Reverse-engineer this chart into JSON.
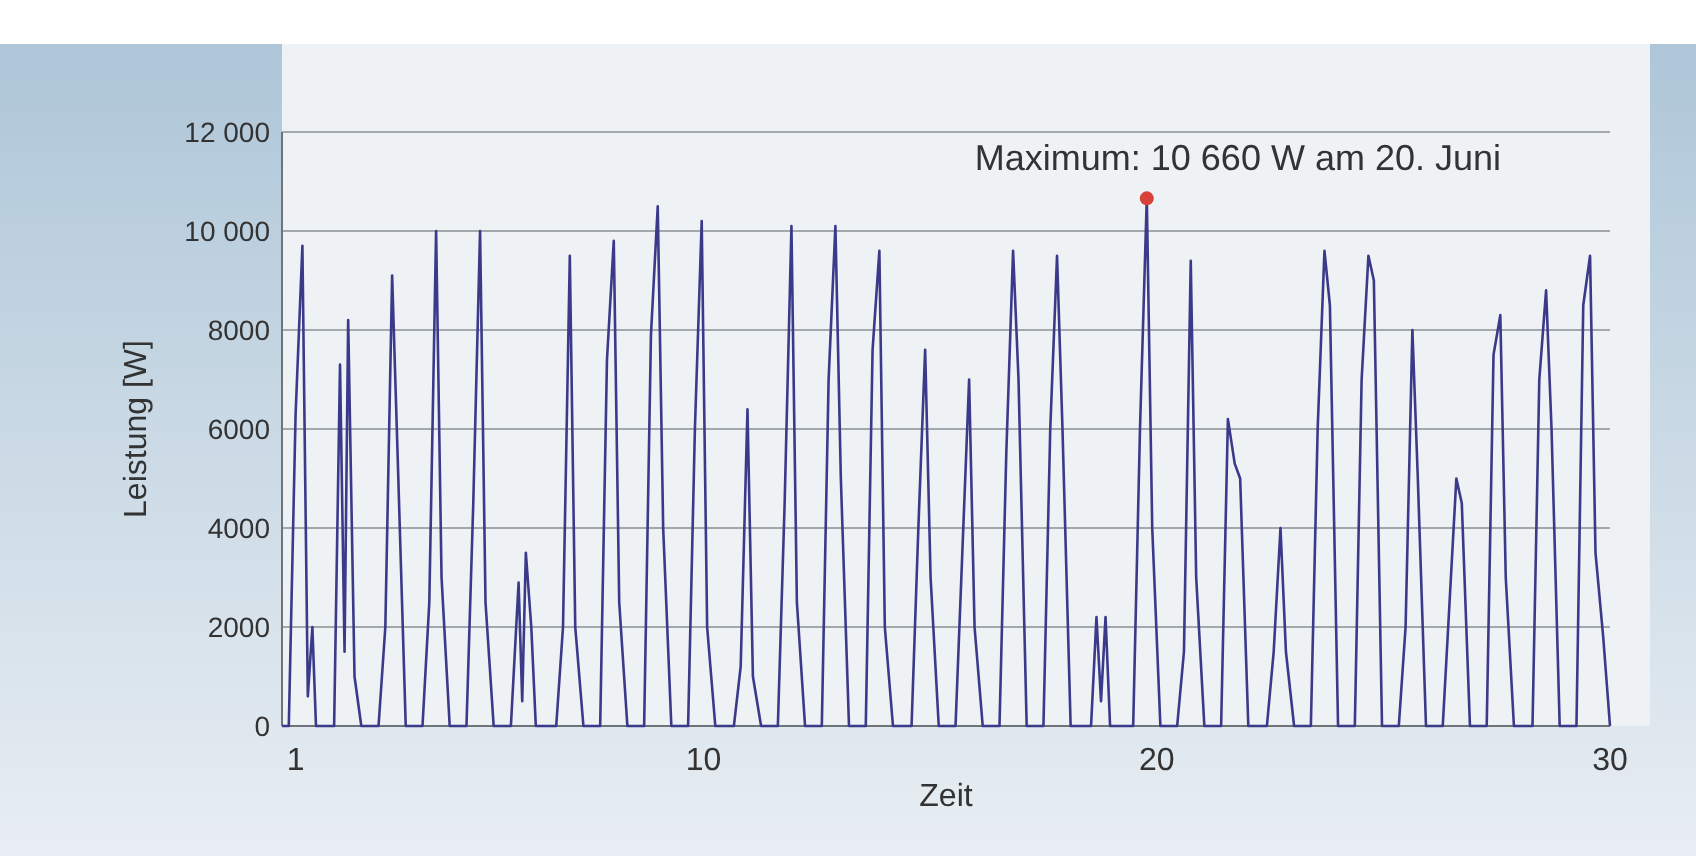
{
  "chart_data": {
    "type": "line",
    "xlabel": "Zeit",
    "ylabel": "Leistung [W]",
    "xlim": [
      0.7,
      30
    ],
    "xticks": [
      1,
      10,
      20,
      30
    ],
    "ylim": [
      0,
      12000
    ],
    "yticks": [
      0,
      2000,
      4000,
      6000,
      8000,
      {
        "value": 10000,
        "label": "10 000"
      },
      {
        "value": 12000,
        "label": "12 000"
      }
    ],
    "grid": "y",
    "annotations": [
      {
        "text": "Maximum: 10 660 W am 20. Juni",
        "x": 19.78,
        "y": 10660
      }
    ],
    "series": [
      {
        "color": "#3b3a8a",
        "x": [
          0.7,
          0.85,
          1.0,
          1.15,
          1.27,
          1.37,
          1.45,
          1.85,
          1.98,
          2.08,
          2.16,
          2.3,
          2.45,
          2.83,
          2.98,
          3.13,
          3.25,
          3.43,
          3.8,
          3.95,
          4.1,
          4.22,
          4.4,
          4.77,
          4.92,
          5.07,
          5.19,
          5.37,
          5.75,
          5.92,
          6.0,
          6.08,
          6.2,
          6.3,
          6.75,
          6.9,
          7.05,
          7.17,
          7.35,
          7.72,
          7.87,
          8.02,
          8.14,
          8.32,
          8.69,
          8.84,
          8.99,
          9.11,
          9.29,
          9.66,
          9.81,
          9.96,
          10.08,
          10.26,
          10.67,
          10.82,
          10.97,
          11.09,
          11.27,
          11.64,
          11.79,
          11.94,
          12.06,
          12.24,
          12.61,
          12.76,
          12.91,
          13.03,
          13.21,
          13.58,
          13.73,
          13.88,
          14.0,
          14.18,
          14.59,
          14.74,
          14.89,
          15.01,
          15.19,
          15.56,
          15.71,
          15.86,
          15.98,
          16.16,
          16.53,
          16.68,
          16.83,
          16.95,
          17.13,
          17.5,
          17.65,
          17.8,
          17.92,
          18.1,
          18.55,
          18.67,
          18.77,
          18.87,
          18.97,
          19.48,
          19.63,
          19.78,
          19.9,
          20.08,
          20.45,
          20.6,
          20.75,
          20.87,
          21.05,
          21.42,
          21.57,
          21.72,
          21.84,
          22.02,
          22.43,
          22.58,
          22.73,
          22.85,
          23.03,
          23.4,
          23.55,
          23.7,
          23.82,
          24.0,
          24.37,
          24.52,
          24.67,
          24.79,
          24.97,
          25.34,
          25.49,
          25.64,
          25.76,
          25.94,
          26.31,
          26.46,
          26.61,
          26.73,
          26.91,
          27.28,
          27.43,
          27.58,
          27.7,
          27.88,
          28.29,
          28.44,
          28.59,
          28.71,
          28.89,
          29.26,
          29.41,
          29.56,
          29.68,
          29.85,
          30.0
        ],
        "values": [
          0,
          0,
          6300,
          9700,
          600,
          2000,
          0,
          0,
          7300,
          1500,
          8200,
          1000,
          0,
          0,
          2000,
          9100,
          5500,
          0,
          0,
          2500,
          10000,
          3000,
          0,
          0,
          4500,
          10000,
          2500,
          0,
          0,
          2900,
          500,
          3500,
          2000,
          0,
          0,
          2000,
          9500,
          2000,
          0,
          0,
          7400,
          9800,
          2500,
          0,
          0,
          7900,
          10500,
          4000,
          0,
          0,
          6000,
          10200,
          2000,
          0,
          0,
          1200,
          6400,
          1000,
          0,
          0,
          4500,
          10100,
          2500,
          0,
          0,
          7000,
          10100,
          5000,
          0,
          0,
          7600,
          9600,
          2000,
          0,
          0,
          4000,
          7600,
          3000,
          0,
          0,
          3500,
          7000,
          2000,
          0,
          0,
          5500,
          9600,
          7000,
          0,
          0,
          6000,
          9500,
          6000,
          0,
          0,
          2200,
          500,
          2200,
          0,
          0,
          6000,
          10660,
          4000,
          0,
          0,
          1500,
          9400,
          3000,
          0,
          0,
          6200,
          5300,
          5000,
          0,
          0,
          1500,
          4000,
          1500,
          0,
          0,
          6000,
          9600,
          8500,
          0,
          0,
          7000,
          9500,
          9000,
          0,
          0,
          2000,
          8000,
          5000,
          0,
          0,
          2500,
          5000,
          4500,
          0,
          0,
          7500,
          8300,
          3000,
          0,
          0,
          7000,
          8800,
          6000,
          0,
          0,
          8500,
          9500,
          3500,
          1800,
          0
        ]
      },
      {
        "type": "scatter",
        "color": "#d8403a",
        "marker": "circle",
        "x": [
          19.78
        ],
        "values": [
          10660
        ]
      }
    ]
  }
}
